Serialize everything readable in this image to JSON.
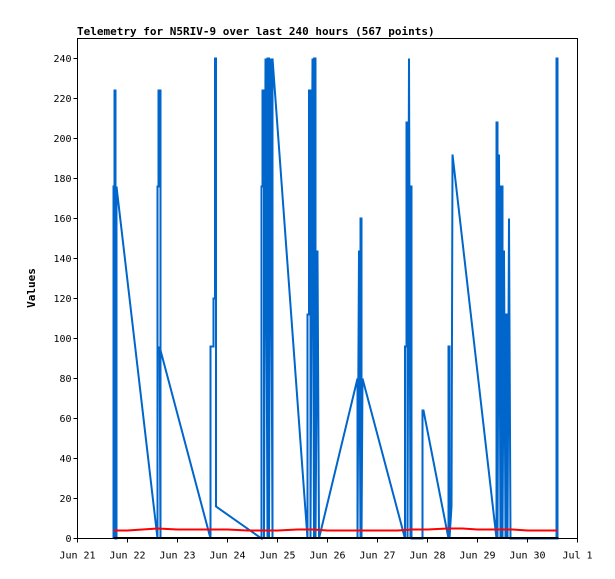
{
  "chart_data": {
    "type": "line",
    "title": "Telemetry for N5RIV-9 over last 240 hours (567 points)",
    "xlabel": "",
    "ylabel": "Values",
    "x_ticks": [
      "Jun 21",
      "Jun 22",
      "Jun 23",
      "Jun 24",
      "Jun 25",
      "Jun 26",
      "Jun 27",
      "Jun 28",
      "Jun 29",
      "Jun 30",
      "Jul 1"
    ],
    "xlim": [
      21,
      31
    ],
    "ylim": [
      0,
      250
    ],
    "y_ticks": [
      0,
      20,
      40,
      60,
      80,
      100,
      120,
      140,
      160,
      180,
      200,
      220,
      240
    ],
    "grid": false,
    "legend": "none",
    "colors": {
      "blue": "#0066cc",
      "red": "#ff0000",
      "black": "#000000"
    },
    "series": [
      {
        "color": "#0066cc",
        "x": [
          21.72,
          21.72,
          21.74,
          21.74,
          21.76,
          21.76,
          21.78,
          21.78,
          22.6,
          22.6,
          22.62,
          22.62,
          22.66,
          22.66,
          22.64,
          23.66,
          23.66,
          23.72,
          23.72,
          23.75,
          23.75,
          23.77,
          23.77,
          24.68,
          24.68,
          24.7,
          24.7,
          24.73,
          24.73,
          24.76,
          24.76,
          24.8,
          24.8,
          24.83,
          24.83,
          24.86,
          24.86,
          24.9,
          24.9,
          25.6,
          25.6,
          25.63,
          25.63,
          25.66,
          25.66,
          25.7,
          25.7,
          25.73,
          25.73,
          25.76,
          25.76,
          25.8,
          25.8,
          25.83,
          26.6,
          26.6,
          26.63,
          26.63,
          26.66,
          26.66,
          26.68,
          26.68,
          26.7,
          27.55,
          27.55,
          27.58,
          27.58,
          27.6,
          27.6,
          27.63,
          27.63,
          27.66,
          27.66,
          27.68,
          27.68,
          27.9,
          27.9,
          27.92,
          28.42,
          28.42,
          28.44,
          28.44,
          28.48,
          28.48,
          28.5,
          28.5,
          29.38,
          29.38,
          29.4,
          29.4,
          29.43,
          29.43,
          29.46,
          29.46,
          29.5,
          29.5,
          29.53,
          29.53,
          29.56,
          29.56,
          29.6,
          29.6,
          29.63,
          29.63,
          29.66,
          29.66,
          30.58,
          30.58,
          30.6,
          30.6,
          30.62
        ],
        "y": [
          0,
          176,
          176,
          224,
          224,
          0,
          0,
          176,
          0,
          176,
          176,
          224,
          224,
          0,
          96,
          0,
          96,
          96,
          120,
          120,
          240,
          240,
          16,
          0,
          176,
          176,
          224,
          224,
          0,
          240,
          240,
          0,
          240,
          240,
          0,
          240,
          240,
          0,
          240,
          0,
          112,
          112,
          224,
          224,
          0,
          240,
          240,
          0,
          240,
          240,
          0,
          144,
          144,
          0,
          80,
          0,
          144,
          144,
          0,
          160,
          160,
          0,
          80,
          0,
          96,
          96,
          208,
          208,
          0,
          240,
          240,
          0,
          176,
          176,
          0,
          0,
          64,
          64,
          0,
          96,
          96,
          0,
          16,
          16,
          192,
          192,
          0,
          208,
          208,
          0,
          192,
          192,
          0,
          176,
          176,
          0,
          144,
          144,
          0,
          112,
          112,
          0,
          160,
          160,
          0,
          0,
          0,
          240,
          240,
          0,
          0
        ]
      },
      {
        "color": "#ff0000",
        "x": [
          21.72,
          22.0,
          22.3,
          22.6,
          23.0,
          23.4,
          23.7,
          24.0,
          24.4,
          24.7,
          25.0,
          25.4,
          25.7,
          26.0,
          26.4,
          26.7,
          27.0,
          27.4,
          27.7,
          28.0,
          28.4,
          28.7,
          29.0,
          29.4,
          29.7,
          30.0,
          30.3,
          30.6
        ],
        "y": [
          4,
          4,
          4.5,
          5,
          4.5,
          4.5,
          4.5,
          4.5,
          4,
          4,
          4,
          4.5,
          4.5,
          4,
          4,
          4,
          4,
          4,
          4.5,
          4.5,
          5,
          5,
          4.5,
          4.5,
          4.5,
          4,
          4,
          4
        ]
      },
      {
        "color": "#000000",
        "x": [
          21.72,
          30.62
        ],
        "y": [
          0.5,
          0.5
        ]
      }
    ]
  }
}
